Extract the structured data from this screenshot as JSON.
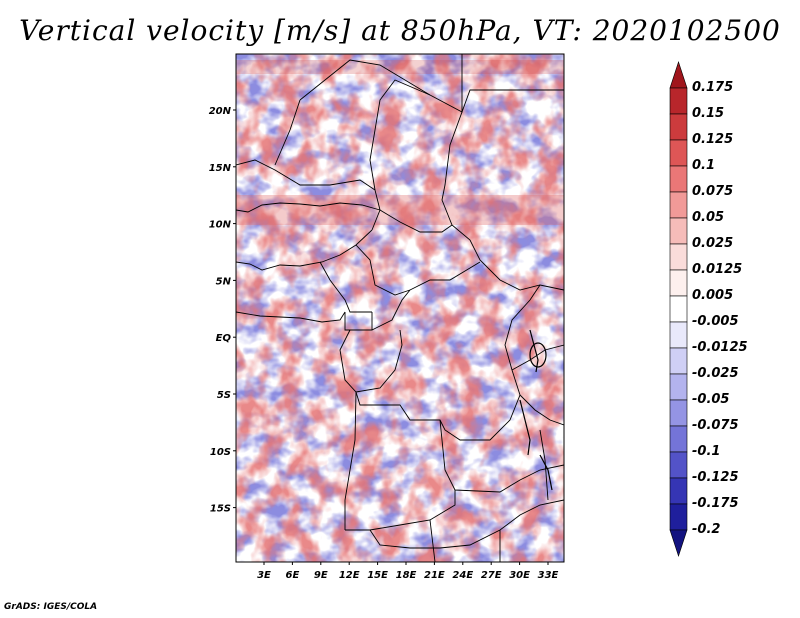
{
  "title": "Vertical velocity [m/s] at 850hPa, VT: 2020102500",
  "credit": "GrADS: IGES/COLA",
  "map": {
    "lat_labels": [
      "20N",
      "15N",
      "10N",
      "5N",
      "EQ",
      "5S",
      "10S",
      "15S"
    ],
    "lon_labels": [
      "3E",
      "6E",
      "9E",
      "12E",
      "15E",
      "18E",
      "21E",
      "24E",
      "27E",
      "30E",
      "33E"
    ]
  },
  "colorbar": {
    "labels": [
      "0.175",
      "0.15",
      "0.125",
      "0.1",
      "0.075",
      "0.05",
      "0.025",
      "0.0125",
      "0.005",
      "-0.005",
      "-0.0125",
      "-0.025",
      "-0.05",
      "-0.075",
      "-0.1",
      "-0.125",
      "-0.175",
      "-0.2"
    ],
    "colors": [
      "#a0161c",
      "#b8262b",
      "#cc3b3d",
      "#de5656",
      "#ea7777",
      "#f19a98",
      "#f6bcb9",
      "#fadcda",
      "#fdf0ee",
      "#ffffff",
      "#e9e9fb",
      "#cfcff5",
      "#b3b3ee",
      "#9494e4",
      "#7474d8",
      "#5353c8",
      "#3535b4",
      "#1f1f9c",
      "#131380"
    ]
  }
}
